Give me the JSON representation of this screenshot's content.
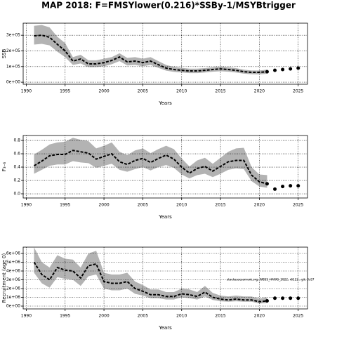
{
  "chart_data": [
    {
      "type": "line",
      "title": "MAP 2018: F=FMSYlower(0.216)*SSBy-1/MSYBtrigger",
      "ylabel": "SSB",
      "xlabel": "Years",
      "x": [
        1991,
        1992,
        1993,
        1994,
        1995,
        1996,
        1997,
        1998,
        1999,
        2000,
        2001,
        2002,
        2003,
        2004,
        2005,
        2006,
        2007,
        2008,
        2009,
        2010,
        2011,
        2012,
        2013,
        2014,
        2015,
        2016,
        2017,
        2018,
        2019,
        2020,
        2021,
        2022,
        2023,
        2024,
        2025
      ],
      "values": [
        296000,
        300000,
        287000,
        242000,
        200000,
        135000,
        148000,
        117000,
        117000,
        125000,
        139000,
        161000,
        130000,
        135000,
        125000,
        135000,
        112000,
        90000,
        81000,
        76000,
        72000,
        72000,
        76000,
        81000,
        85000,
        81000,
        76000,
        67000,
        63000,
        63000,
        67000,
        null,
        null,
        null,
        null
      ],
      "upper": [
        360000,
        365000,
        350000,
        290000,
        250000,
        160000,
        175000,
        140000,
        140000,
        150000,
        160000,
        185000,
        155000,
        160000,
        150000,
        160000,
        135000,
        110000,
        98000,
        92000,
        87000,
        87000,
        90000,
        95000,
        100000,
        95000,
        90000,
        80000,
        75000,
        75000,
        80000,
        null,
        null,
        null,
        null
      ],
      "lower": [
        240000,
        245000,
        235000,
        195000,
        160000,
        110000,
        120000,
        96000,
        96000,
        102000,
        115000,
        135000,
        107000,
        110000,
        102000,
        110000,
        92000,
        74000,
        66000,
        62000,
        58000,
        58000,
        62000,
        67000,
        70000,
        67000,
        62000,
        55000,
        51000,
        50000,
        54000,
        null,
        null,
        null,
        null
      ],
      "forecast": [
        null,
        null,
        null,
        null,
        null,
        null,
        null,
        null,
        null,
        null,
        null,
        null,
        null,
        null,
        null,
        null,
        null,
        null,
        null,
        null,
        null,
        null,
        null,
        null,
        null,
        null,
        null,
        null,
        null,
        null,
        67000,
        76000,
        81000,
        85000,
        90000
      ],
      "color": "#000000",
      "band_color": "#b3b3b3",
      "grid": true,
      "xlim": [
        1989.6,
        2026.2
      ],
      "xticks": [
        1990,
        1995,
        2000,
        2005,
        2010,
        2015,
        2020,
        2025
      ],
      "ylim": [
        -13000,
        377000
      ],
      "yticks": [
        {
          "value": 0,
          "label": "0e+00"
        },
        {
          "value": 100000,
          "label": "1e+05"
        },
        {
          "value": 200000,
          "label": "2e+05"
        },
        {
          "value": 300000,
          "label": "3e+05"
        }
      ]
    },
    {
      "type": "line",
      "ylabel": "F₃₋₆",
      "xlabel": "Years",
      "x": [
        1991,
        1992,
        1993,
        1994,
        1995,
        1996,
        1997,
        1998,
        1999,
        2000,
        2001,
        2002,
        2003,
        2004,
        2005,
        2006,
        2007,
        2008,
        2009,
        2010,
        2011,
        2012,
        2013,
        2014,
        2015,
        2016,
        2017,
        2018,
        2019,
        2020,
        2021,
        2022,
        2023,
        2024,
        2025
      ],
      "values": [
        0.42,
        0.49,
        0.57,
        0.59,
        0.59,
        0.65,
        0.63,
        0.61,
        0.52,
        0.56,
        0.6,
        0.48,
        0.44,
        0.5,
        0.53,
        0.47,
        0.53,
        0.58,
        0.52,
        0.4,
        0.31,
        0.38,
        0.41,
        0.34,
        0.41,
        0.48,
        0.5,
        0.5,
        0.28,
        0.18,
        0.15,
        null,
        null,
        null,
        null
      ],
      "upper": [
        0.59,
        0.66,
        0.74,
        0.77,
        0.78,
        0.84,
        0.81,
        0.79,
        0.68,
        0.72,
        0.77,
        0.63,
        0.58,
        0.65,
        0.68,
        0.61,
        0.67,
        0.72,
        0.67,
        0.53,
        0.41,
        0.5,
        0.54,
        0.45,
        0.54,
        0.63,
        0.68,
        0.69,
        0.4,
        0.29,
        0.28,
        null,
        null,
        null,
        null
      ],
      "lower": [
        0.3,
        0.36,
        0.42,
        0.44,
        0.44,
        0.49,
        0.47,
        0.46,
        0.39,
        0.42,
        0.45,
        0.36,
        0.33,
        0.37,
        0.4,
        0.35,
        0.4,
        0.43,
        0.39,
        0.29,
        0.23,
        0.28,
        0.3,
        0.25,
        0.3,
        0.36,
        0.38,
        0.37,
        0.19,
        0.11,
        0.09,
        null,
        null,
        null,
        null
      ],
      "forecast": [
        null,
        null,
        null,
        null,
        null,
        null,
        null,
        null,
        null,
        null,
        null,
        null,
        null,
        null,
        null,
        null,
        null,
        null,
        null,
        null,
        null,
        null,
        null,
        null,
        null,
        null,
        null,
        null,
        null,
        null,
        0.15,
        0.07,
        0.11,
        0.12,
        0.12
      ],
      "color": "#000000",
      "band_color": "#b3b3b3",
      "grid": true,
      "xlim": [
        1989.6,
        2026.2
      ],
      "xticks": [
        1990,
        1995,
        2000,
        2005,
        2010,
        2015,
        2020,
        2025
      ],
      "ylim": [
        -0.063,
        0.874
      ],
      "yticks": [
        {
          "value": 0,
          "label": "0.0"
        },
        {
          "value": 0.2,
          "label": "0.2"
        },
        {
          "value": 0.4,
          "label": "0.4"
        },
        {
          "value": 0.6,
          "label": "0.6"
        },
        {
          "value": 0.8,
          "label": "0.8"
        }
      ]
    },
    {
      "type": "line",
      "ylabel": "Recruitment (age 0)",
      "xlabel": "Years",
      "annotation": "stockassessment.org, WBSS_HAWG_2022, r6122 , git: 3c87",
      "x": [
        1991,
        1992,
        1993,
        1994,
        1995,
        1996,
        1997,
        1998,
        1999,
        2000,
        2001,
        2002,
        2003,
        2004,
        2005,
        2006,
        2007,
        2008,
        2009,
        2010,
        2011,
        2012,
        2013,
        2014,
        2015,
        2016,
        2017,
        2018,
        2019,
        2020,
        2021,
        2022,
        2023,
        2024,
        2025
      ],
      "values": [
        5000000,
        3600000,
        3000000,
        4400000,
        4100000,
        4000000,
        3200000,
        4600000,
        4800000,
        2800000,
        2600000,
        2600000,
        2800000,
        2000000,
        1700000,
        1300000,
        1300000,
        1100000,
        1100000,
        1400000,
        1300000,
        1100000,
        1600000,
        1000000,
        800000,
        700000,
        800000,
        700000,
        700000,
        500000,
        600000,
        null,
        null,
        null,
        null
      ],
      "upper": [
        6700000,
        5000000,
        4400000,
        5800000,
        5400000,
        5300000,
        4400000,
        6000000,
        6300000,
        3800000,
        3600000,
        3600000,
        3800000,
        2800000,
        2400000,
        1900000,
        1900000,
        1600000,
        1600000,
        2000000,
        1900000,
        1600000,
        2300000,
        1500000,
        1200000,
        1100000,
        1200000,
        1100000,
        1100000,
        850000,
        1000000,
        null,
        null,
        null,
        null
      ],
      "lower": [
        3800000,
        2600000,
        2100000,
        3300000,
        3100000,
        3000000,
        2300000,
        3400000,
        3600000,
        2000000,
        1800000,
        1800000,
        2000000,
        1400000,
        1200000,
        900000,
        900000,
        750000,
        750000,
        1000000,
        900000,
        750000,
        1100000,
        700000,
        550000,
        500000,
        550000,
        500000,
        500000,
        300000,
        350000,
        null,
        null,
        null,
        null
      ],
      "forecast": [
        null,
        null,
        null,
        null,
        null,
        null,
        null,
        null,
        null,
        null,
        null,
        null,
        null,
        null,
        null,
        null,
        null,
        null,
        null,
        null,
        null,
        null,
        null,
        null,
        null,
        null,
        null,
        null,
        null,
        null,
        600000,
        900000,
        900000,
        900000,
        900000
      ],
      "color": "#000000",
      "band_color": "#b3b3b3",
      "grid": true,
      "xlim": [
        1989.6,
        2026.2
      ],
      "xticks": [
        1990,
        1995,
        2000,
        2005,
        2010,
        2015,
        2020,
        2025
      ],
      "ylim": [
        -320000,
        6720000
      ],
      "yticks": [
        {
          "value": 0,
          "label": "0e+00"
        },
        {
          "value": 1000000,
          "label": "1e+06"
        },
        {
          "value": 2000000,
          "label": "2e+06"
        },
        {
          "value": 3000000,
          "label": "3e+06"
        },
        {
          "value": 4000000,
          "label": "4e+06"
        },
        {
          "value": 5000000,
          "label": "5e+06"
        },
        {
          "value": 6000000,
          "label": "6e+06"
        }
      ]
    }
  ]
}
